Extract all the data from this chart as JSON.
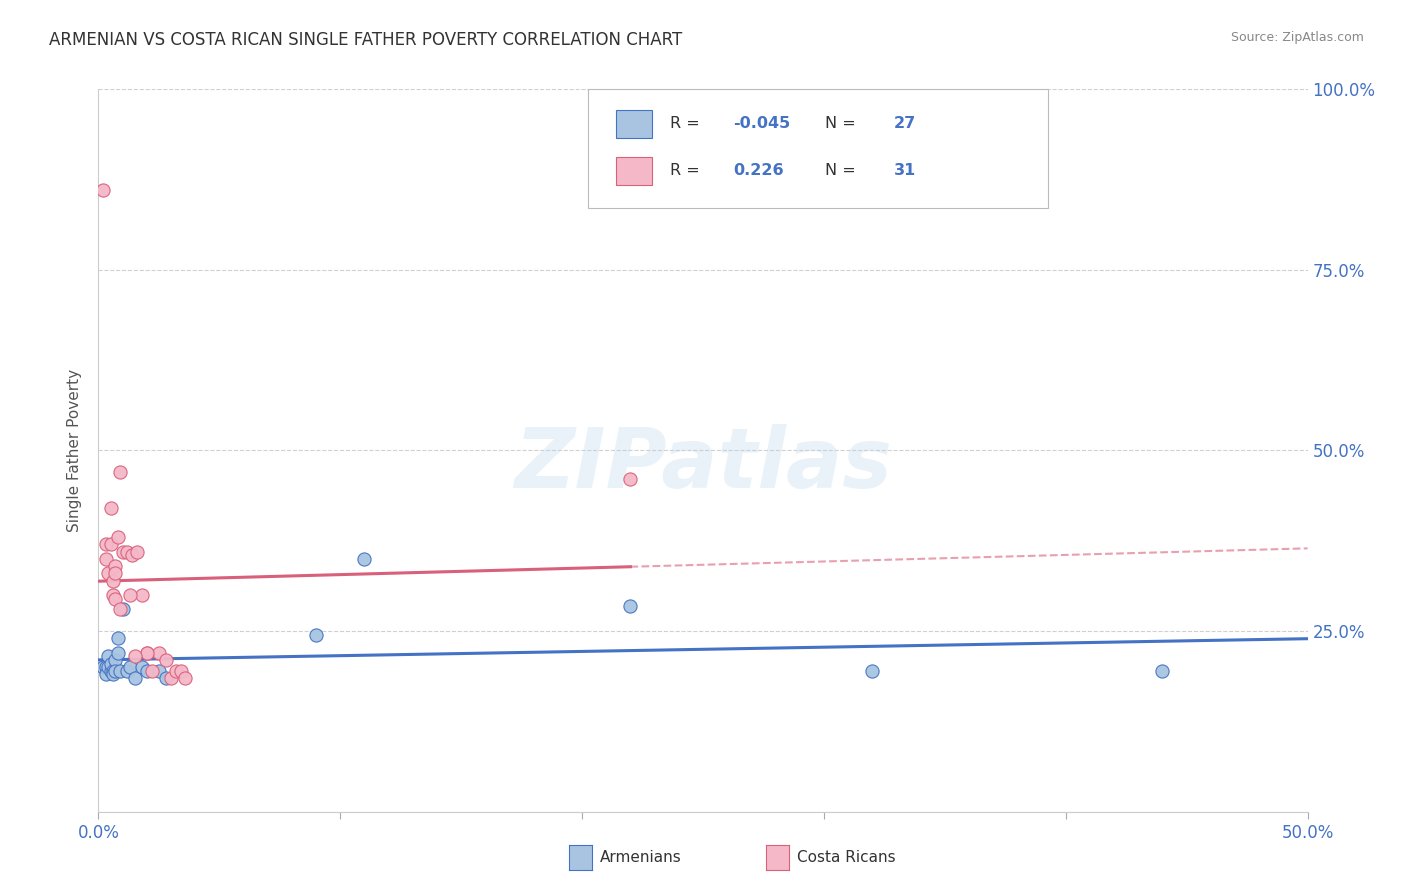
{
  "title": "ARMENIAN VS COSTA RICAN SINGLE FATHER POVERTY CORRELATION CHART",
  "source": "Source: ZipAtlas.com",
  "ylabel": "Single Father Poverty",
  "xlim": [
    0.0,
    0.5
  ],
  "ylim": [
    0.0,
    1.0
  ],
  "xtick_vals": [
    0.0,
    0.1,
    0.2,
    0.3,
    0.4,
    0.5
  ],
  "xtick_labels": [
    "0.0%",
    "",
    "",
    "",
    "",
    "50.0%"
  ],
  "ytick_vals": [
    0.0,
    0.25,
    0.5,
    0.75,
    1.0
  ],
  "ytick_labels_right": [
    "",
    "25.0%",
    "50.0%",
    "75.0%",
    "100.0%"
  ],
  "armenian_R": -0.045,
  "armenian_N": 27,
  "costarican_R": 0.226,
  "costarican_N": 31,
  "armenian_color": "#a8c4e0",
  "armenian_line_color": "#4472c4",
  "costarican_color": "#f4b8c8",
  "costarican_line_color": "#d9607a",
  "watermark": "ZIPatlas",
  "background_color": "#ffffff",
  "grid_color": "#d0d0d0",
  "armenians_x": [
    0.002,
    0.003,
    0.003,
    0.004,
    0.004,
    0.005,
    0.005,
    0.006,
    0.006,
    0.007,
    0.007,
    0.008,
    0.008,
    0.009,
    0.01,
    0.012,
    0.013,
    0.015,
    0.018,
    0.02,
    0.025,
    0.028,
    0.09,
    0.11,
    0.22,
    0.32,
    0.44
  ],
  "armenians_y": [
    0.2,
    0.2,
    0.19,
    0.215,
    0.2,
    0.195,
    0.205,
    0.195,
    0.19,
    0.21,
    0.195,
    0.22,
    0.24,
    0.195,
    0.28,
    0.195,
    0.2,
    0.185,
    0.2,
    0.195,
    0.195,
    0.185,
    0.245,
    0.35,
    0.285,
    0.195,
    0.195
  ],
  "costaricans_x": [
    0.002,
    0.003,
    0.003,
    0.004,
    0.005,
    0.005,
    0.006,
    0.006,
    0.007,
    0.007,
    0.008,
    0.009,
    0.01,
    0.012,
    0.014,
    0.016,
    0.018,
    0.02,
    0.022,
    0.025,
    0.028,
    0.03,
    0.032,
    0.034,
    0.036,
    0.02,
    0.015,
    0.013,
    0.009,
    0.22,
    0.007
  ],
  "costaricans_y": [
    0.86,
    0.37,
    0.35,
    0.33,
    0.42,
    0.37,
    0.32,
    0.3,
    0.295,
    0.34,
    0.38,
    0.28,
    0.36,
    0.36,
    0.355,
    0.36,
    0.3,
    0.22,
    0.195,
    0.22,
    0.21,
    0.185,
    0.195,
    0.195,
    0.185,
    0.22,
    0.215,
    0.3,
    0.47,
    0.46,
    0.33
  ]
}
